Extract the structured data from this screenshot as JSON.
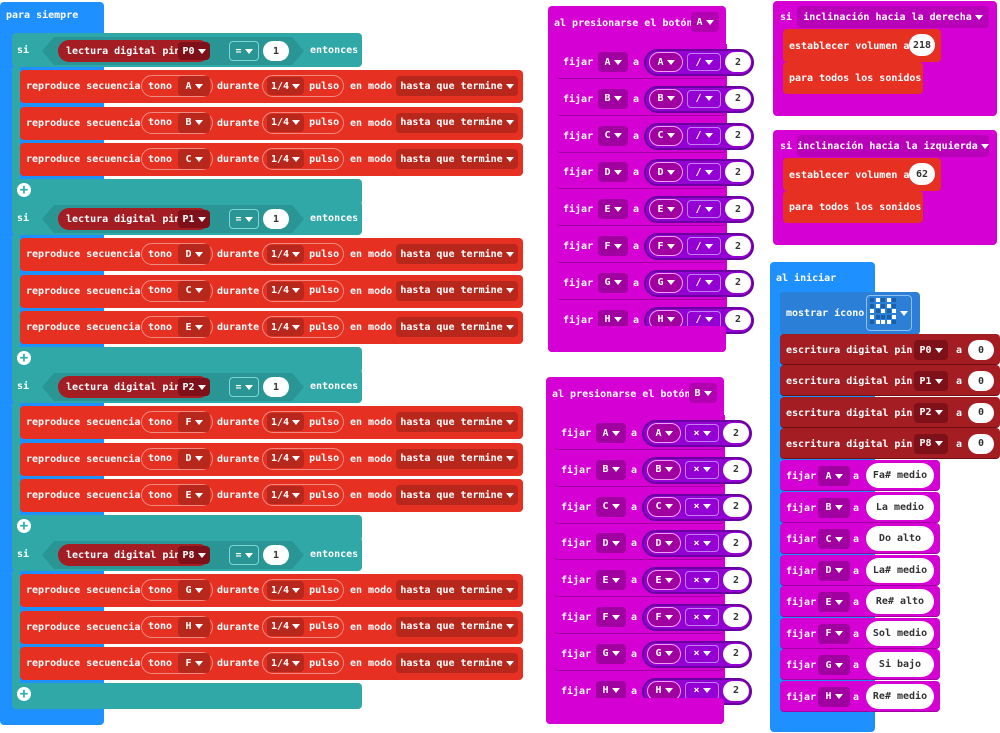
{
  "forever": {
    "title": "para siempre",
    "if_kw": "si",
    "then_kw": "entonces",
    "read_label": "lectura digital pin",
    "eq_op": "=",
    "play_label": "reproduce secuencia",
    "tone_label": "tono",
    "for_label": "durante",
    "beat_value": "1/4",
    "beat_unit": "pulso",
    "mode_label": "en modo",
    "mode_value": "hasta que termine",
    "ifs": [
      {
        "pin": "P0",
        "value": "1",
        "notes": [
          "A",
          "B",
          "C"
        ]
      },
      {
        "pin": "P1",
        "value": "1",
        "notes": [
          "D",
          "C",
          "E"
        ]
      },
      {
        "pin": "P2",
        "value": "1",
        "notes": [
          "F",
          "D",
          "E"
        ]
      },
      {
        "pin": "P8",
        "value": "1",
        "notes": [
          "G",
          "H",
          "F"
        ]
      }
    ]
  },
  "button_a": {
    "title": "al presionarse el botón",
    "button": "A",
    "set_label": "fijar",
    "to_label": "a",
    "op": "/",
    "value": "2",
    "vars": [
      "A",
      "B",
      "C",
      "D",
      "E",
      "F",
      "G",
      "H"
    ]
  },
  "button_b": {
    "title": "al presionarse el botón",
    "button": "B",
    "set_label": "fijar",
    "to_label": "a",
    "op": "×",
    "value": "2",
    "vars": [
      "A",
      "B",
      "C",
      "D",
      "E",
      "F",
      "G",
      "H"
    ]
  },
  "tilt_right": {
    "if_kw": "si",
    "condition": "inclinación hacia la derecha",
    "set_volume_label": "establecer volumen a",
    "volume": "218",
    "all_sounds": "para todos los sonidos"
  },
  "tilt_left": {
    "if_kw": "si",
    "condition": "inclinación hacia la izquierda",
    "set_volume_label": "establecer volumen a",
    "volume": "62",
    "all_sounds": "para todos los sonidos"
  },
  "on_start": {
    "title": "al iniciar",
    "show_icon_label": "mostrar ícono",
    "write_label": "escritura digital pin",
    "to_label": "a",
    "writes": [
      {
        "pin": "P0",
        "value": "0"
      },
      {
        "pin": "P1",
        "value": "0"
      },
      {
        "pin": "P2",
        "value": "0"
      },
      {
        "pin": "P8",
        "value": "0"
      }
    ],
    "set_label": "fijar",
    "sets": [
      {
        "var": "A",
        "value": "Fa# medio"
      },
      {
        "var": "B",
        "value": "La medio"
      },
      {
        "var": "C",
        "value": "Do alto"
      },
      {
        "var": "D",
        "value": "La# medio"
      },
      {
        "var": "E",
        "value": "Re# alto"
      },
      {
        "var": "F",
        "value": "Sol medio"
      },
      {
        "var": "G",
        "value": "Si bajo"
      },
      {
        "var": "H",
        "value": "Re# medio"
      }
    ]
  },
  "colors": {
    "event_blue": "#1e90ff",
    "logic_teal": "#30a8a8",
    "music_red": "#e63022",
    "music_dark": "#b8271c",
    "pins_darkred": "#a31d23",
    "pins_inner": "#7d1018",
    "vars_magenta": "#d400d4",
    "math_purple": "#9400d3",
    "var_dark": "#a0009f"
  }
}
